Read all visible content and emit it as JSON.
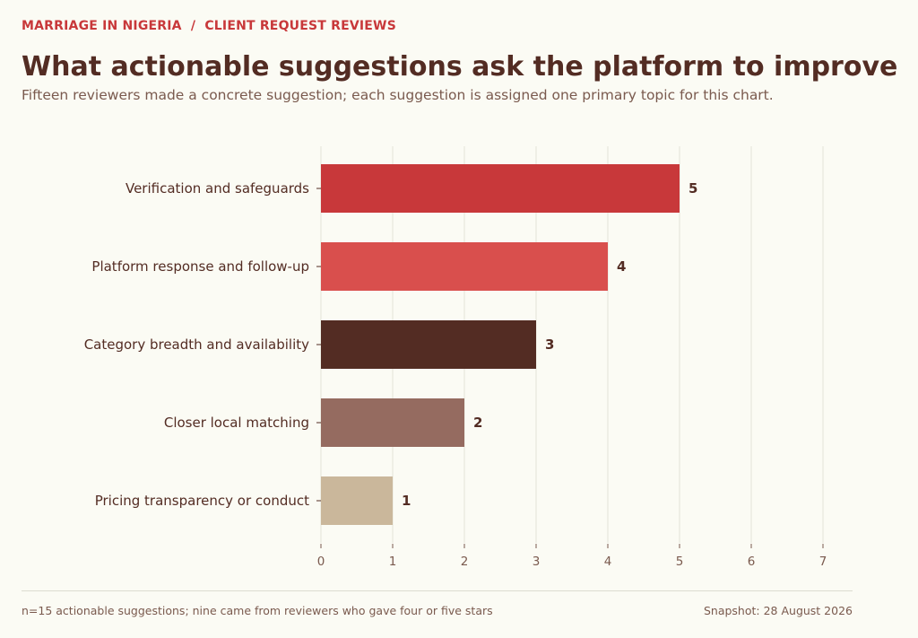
{
  "header": {
    "kicker": "MARRIAGE IN NIGERIA  /  CLIENT REQUEST REVIEWS",
    "title": "What actionable suggestions ask the platform to improve",
    "subtitle": "Fifteen reviewers made a concrete suggestion; each suggestion is assigned one primary topic for this chart."
  },
  "footer": {
    "note": "n=15 actionable suggestions; nine came from reviewers who gave four or five stars",
    "snapshot": "Snapshot: 28 August 2026"
  },
  "chart_data": {
    "type": "bar",
    "orientation": "horizontal",
    "categories": [
      "Verification and safeguards",
      "Platform response and follow-up",
      "Category breadth and availability",
      "Closer local matching",
      "Pricing transparency or conduct"
    ],
    "values": [
      5,
      4,
      3,
      2,
      1
    ],
    "bar_colors": [
      "#c8383a",
      "#d94f4d",
      "#532c23",
      "#956b60",
      "#cab79b"
    ],
    "xlim": [
      0,
      7
    ],
    "xticks": [
      0,
      1,
      2,
      3,
      4,
      5,
      6,
      7
    ],
    "xlabel": "",
    "ylabel": "",
    "grid": "vertical",
    "data_labels": true
  },
  "colors": {
    "background": "#fbfbf4",
    "accent": "#c8383a",
    "text_dark": "#532c23",
    "text_muted": "#7a5a4e",
    "grid": "#e3e3d8"
  }
}
